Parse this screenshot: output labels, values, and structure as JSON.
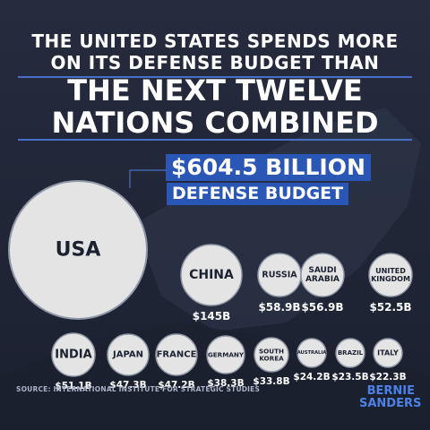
{
  "headline": {
    "line1": "THE UNITED STATES SPENDS MORE",
    "line2": "ON ITS DEFENSE BUDGET THAN",
    "line3": "THE NEXT TWELVE",
    "line4": "NATIONS COMBINED"
  },
  "callout": {
    "amount": "$604.5 BILLION",
    "label": "DEFENSE BUDGET"
  },
  "source": "SOURCE: INTERNATIONAL INSTITUTE FOR STRATEGIC STUDIES",
  "logo": {
    "line1": "BERNIE",
    "line2": "SANDERS"
  },
  "colors": {
    "background": "#222839",
    "accent": "#2a57b5",
    "circle": "#e4e4e4",
    "text": "#ffffff"
  },
  "chart_data": {
    "type": "bubble",
    "unit": "billion USD",
    "categories": [
      "USA",
      "CHINA",
      "RUSSIA",
      "SAUDI ARABIA",
      "UNITED KINGDOM",
      "INDIA",
      "JAPAN",
      "FRANCE",
      "GERMANY",
      "SOUTH KOREA",
      "AUSTRALIA",
      "BRAZIL",
      "ITALY"
    ],
    "values": [
      604.5,
      145,
      58.9,
      56.9,
      52.5,
      51.1,
      47.3,
      47.2,
      38.3,
      33.8,
      24.2,
      23.5,
      22.3
    ],
    "bubbles": [
      {
        "name": "USA",
        "lines": [
          "USA"
        ],
        "value": 604.5,
        "value_label": ""
      },
      {
        "name": "CHINA",
        "lines": [
          "CHINA"
        ],
        "value": 145,
        "value_label": "$145B"
      },
      {
        "name": "RUSSIA",
        "lines": [
          "RUSSIA"
        ],
        "value": 58.9,
        "value_label": "$58.9B"
      },
      {
        "name": "SAUDI ARABIA",
        "lines": [
          "SAUDI",
          "ARABIA"
        ],
        "value": 56.9,
        "value_label": "$56.9B"
      },
      {
        "name": "UNITED KINGDOM",
        "lines": [
          "UNITED",
          "KINGDOM"
        ],
        "value": 52.5,
        "value_label": "$52.5B"
      },
      {
        "name": "INDIA",
        "lines": [
          "INDIA"
        ],
        "value": 51.1,
        "value_label": "$51.1B"
      },
      {
        "name": "JAPAN",
        "lines": [
          "JAPAN"
        ],
        "value": 47.3,
        "value_label": "$47.3B"
      },
      {
        "name": "FRANCE",
        "lines": [
          "FRANCE"
        ],
        "value": 47.2,
        "value_label": "$47.2B"
      },
      {
        "name": "GERMANY",
        "lines": [
          "GERMANY"
        ],
        "value": 38.3,
        "value_label": "$38.3B"
      },
      {
        "name": "SOUTH KOREA",
        "lines": [
          "SOUTH",
          "KOREA"
        ],
        "value": 33.8,
        "value_label": "$33.8B"
      },
      {
        "name": "AUSTRALIA",
        "lines": [
          "AUSTRALIA"
        ],
        "value": 24.2,
        "value_label": "$24.2B"
      },
      {
        "name": "BRAZIL",
        "lines": [
          "BRAZIL"
        ],
        "value": 23.5,
        "value_label": "$23.5B"
      },
      {
        "name": "ITALY",
        "lines": [
          "ITALY"
        ],
        "value": 22.3,
        "value_label": "$22.3B"
      }
    ]
  }
}
